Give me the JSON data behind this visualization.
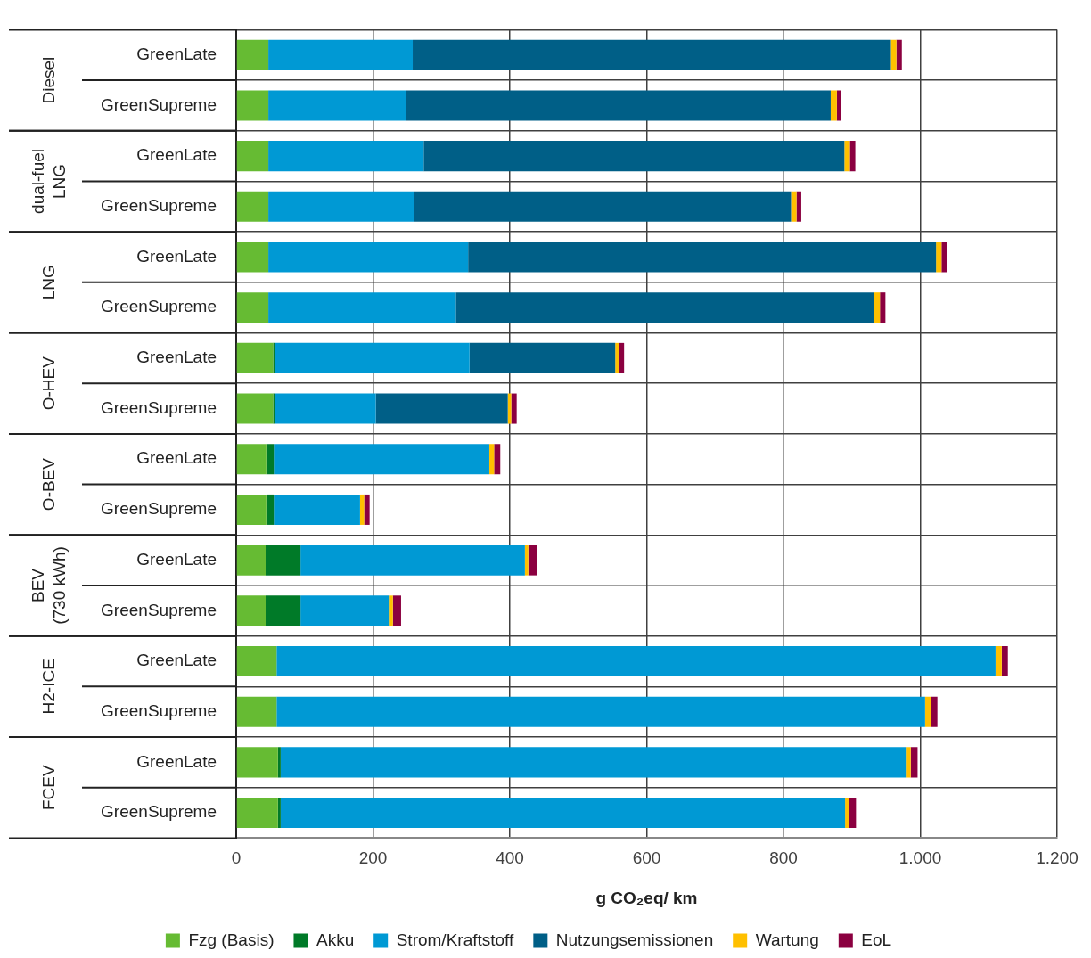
{
  "chart_data": {
    "type": "bar",
    "orientation": "horizontal",
    "stacked": true,
    "xlabel": "g CO₂eq/ km",
    "categories": [
      "GreenLate",
      "GreenSupreme",
      "GreenLate",
      "GreenSupreme",
      "GreenLate",
      "GreenSupreme",
      "GreenLate",
      "GreenSupreme",
      "GreenLate",
      "GreenSupreme",
      "GreenLate",
      "GreenSupreme",
      "GreenLate",
      "GreenSupreme",
      "GreenLate",
      "GreenSupreme"
    ],
    "annotations": [
      "Diesel",
      "dual-fuel\nLNG",
      "LNG",
      "O-HEV",
      "O-BEV",
      "BEV\n(730 kWh)",
      "H2-ICE",
      "FCEV"
    ],
    "series": [
      {
        "name": "Fzg (Basis)",
        "color": "#66bb33",
        "values": [
          47,
          47,
          47,
          47,
          47,
          47,
          54,
          54,
          44,
          44,
          43,
          43,
          59,
          59,
          61,
          61
        ]
      },
      {
        "name": "Akku",
        "color": "#007a28",
        "values": [
          0,
          0,
          0,
          0,
          0,
          0,
          2,
          2,
          11,
          11,
          51,
          51,
          0,
          0,
          4,
          4
        ]
      },
      {
        "name": "Strom/Kraftstoff",
        "color": "#0099d4",
        "values": [
          211,
          201,
          227,
          213,
          292,
          274,
          285,
          148,
          315,
          126,
          328,
          129,
          1051,
          948,
          915,
          825
        ]
      },
      {
        "name": "Nutzungsemissionen",
        "color": "#005f87",
        "values": [
          699,
          621,
          615,
          551,
          684,
          611,
          213,
          193,
          0,
          0,
          0,
          0,
          0,
          0,
          0,
          0
        ]
      },
      {
        "name": "Wartung",
        "color": "#ffc000",
        "values": [
          8,
          9,
          8,
          8,
          8,
          9,
          5,
          5,
          7,
          6,
          5,
          6,
          9,
          9,
          6,
          6
        ]
      },
      {
        "name": "EoL",
        "color": "#8b0040",
        "values": [
          8,
          6,
          8,
          7,
          8,
          8,
          8,
          8,
          9,
          8,
          13,
          12,
          9,
          9,
          10,
          10
        ]
      }
    ],
    "xlim": [
      0,
      1200
    ],
    "xticks": [
      0,
      200,
      400,
      600,
      800,
      {
        "value": 1000,
        "label": "1.000"
      },
      {
        "value": 1200,
        "label": "1.200"
      }
    ],
    "grid": true,
    "legend": "bottom"
  }
}
